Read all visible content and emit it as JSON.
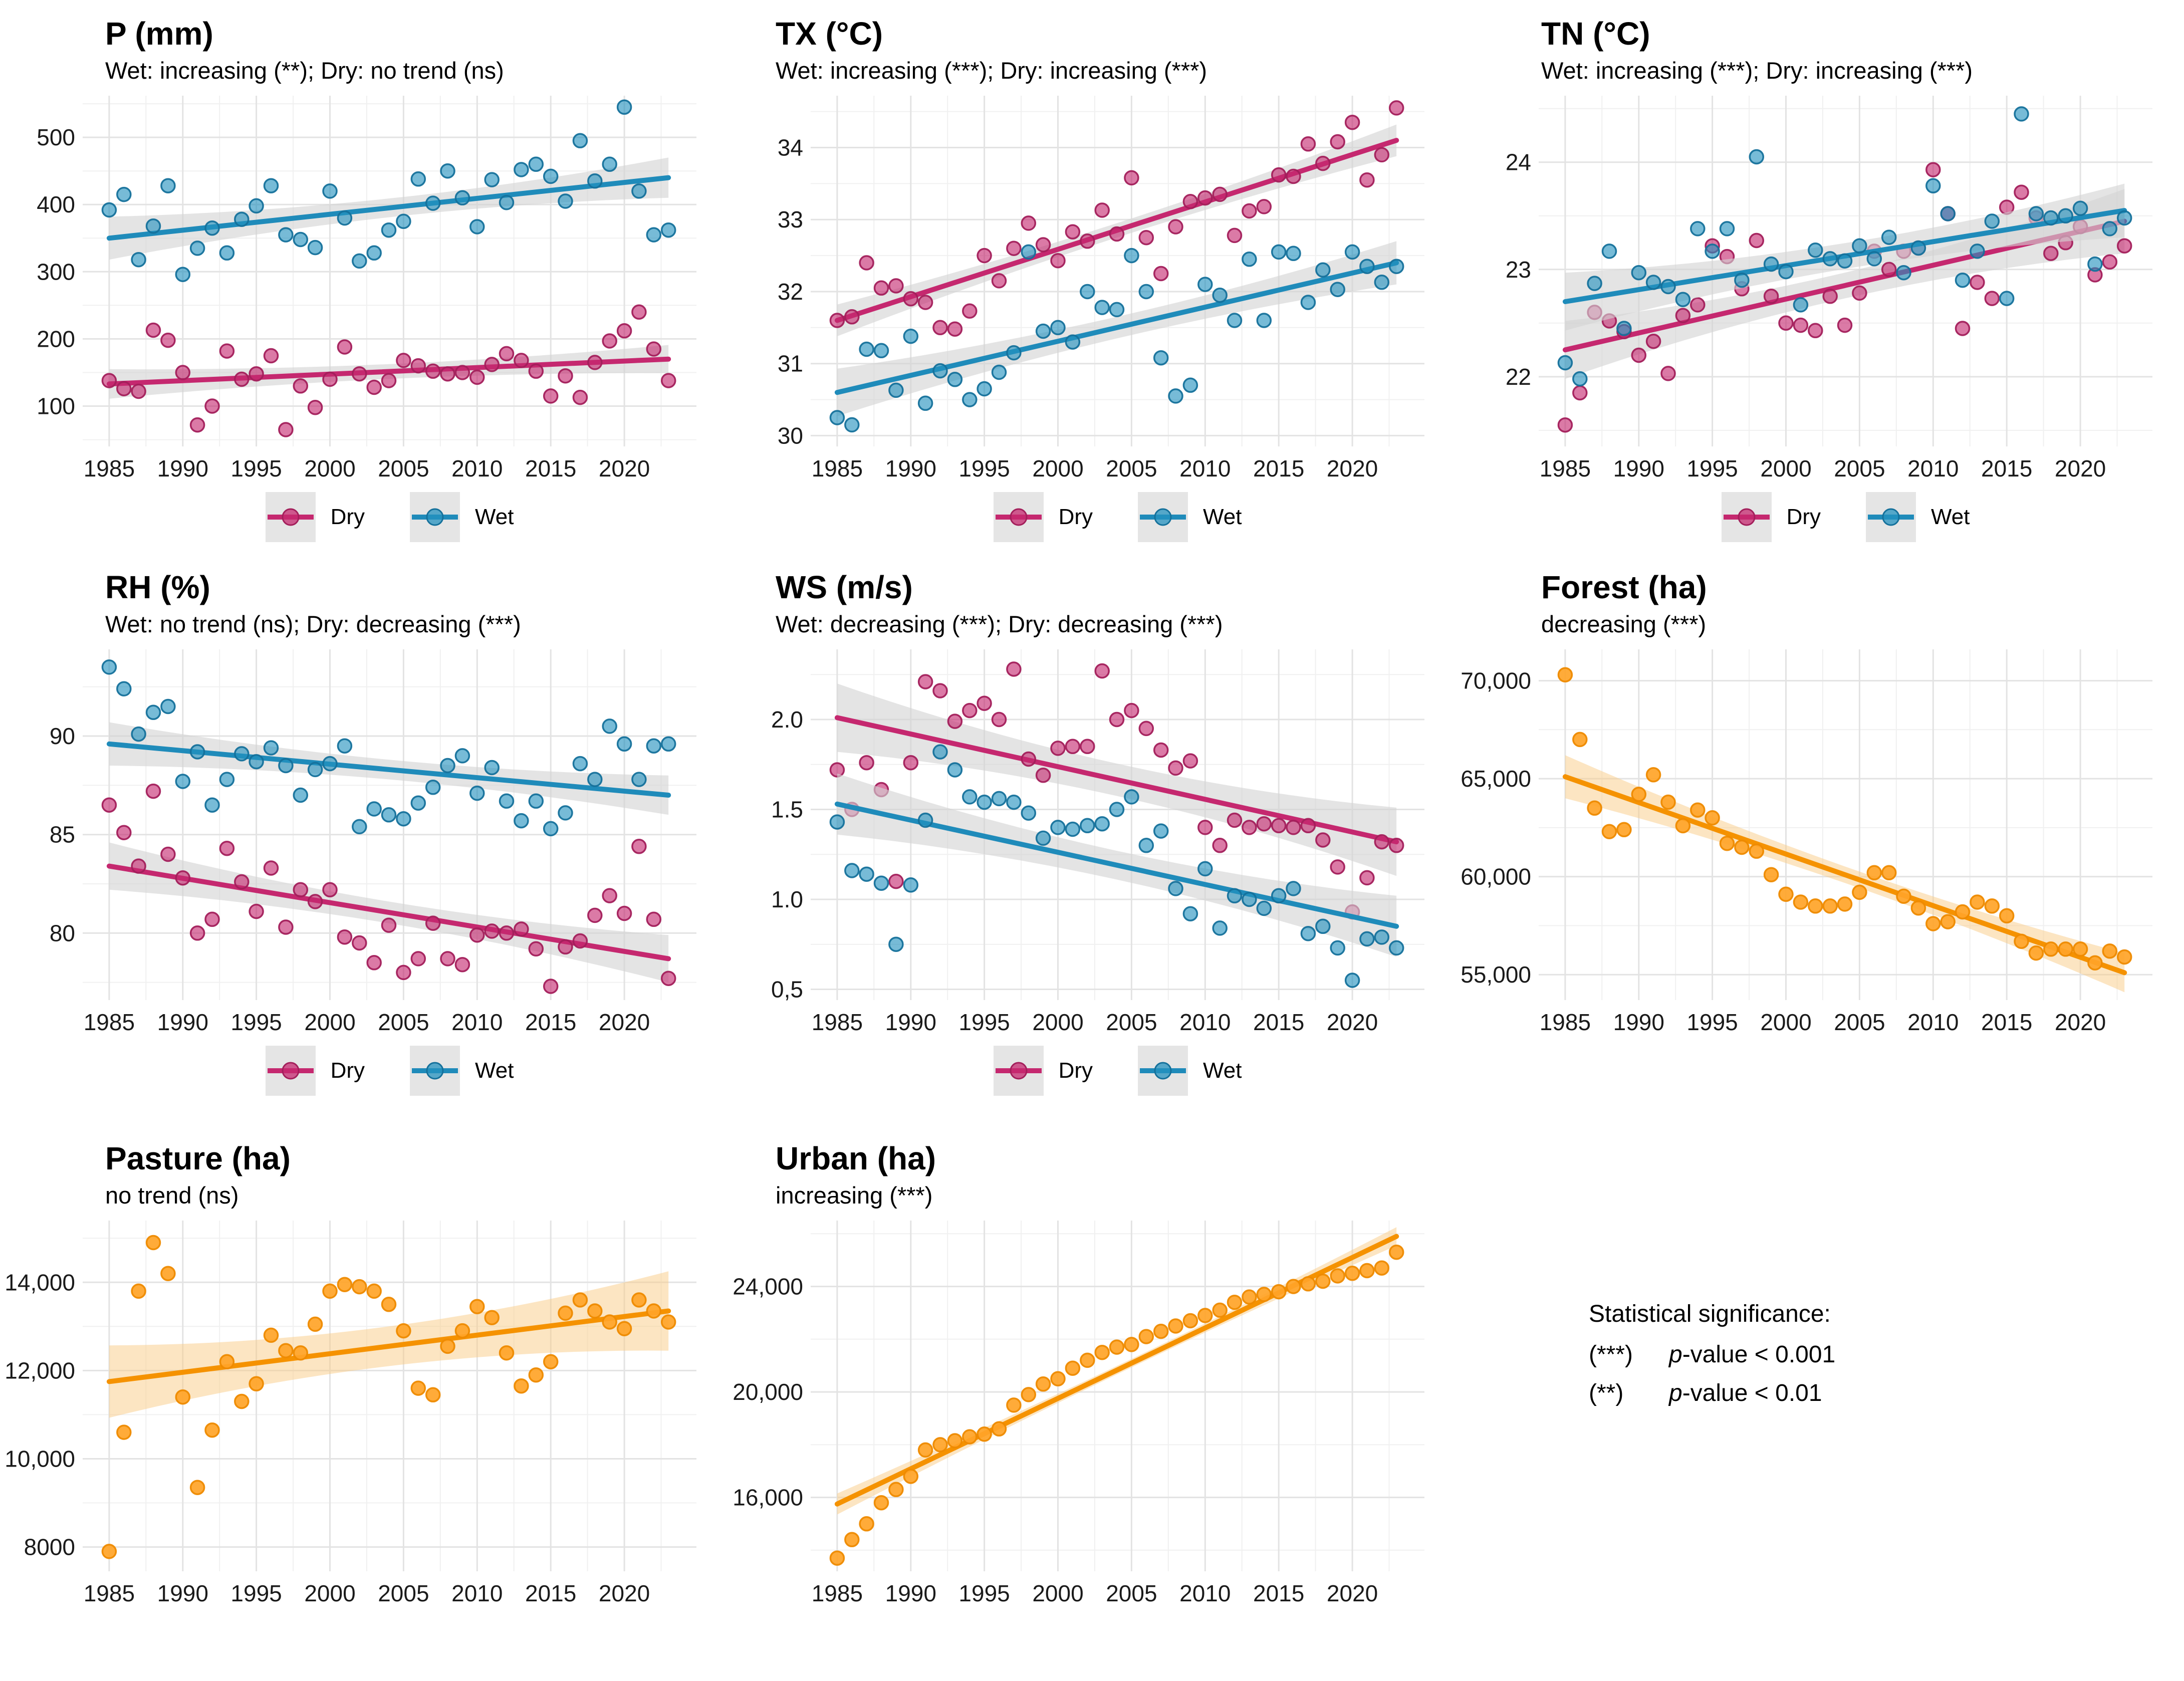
{
  "figure": {
    "legend": {
      "dry_label": "Dry",
      "wet_label": "Wet"
    },
    "significance_note": {
      "heading": "Statistical significance:",
      "lines": [
        {
          "stars": "(***)",
          "p": "p",
          "rest": "-value < 0.001"
        },
        {
          "stars": "(**)",
          "p": "p",
          "rest": "-value < 0.01"
        }
      ]
    }
  },
  "colors": {
    "dry": {
      "line": "#C5286F",
      "point": "#C5286F",
      "stroke": "#A31F5B",
      "fill_opacity": 0.62
    },
    "wet": {
      "line": "#1F8BBA",
      "point": "#2491BF",
      "stroke": "#15719B",
      "fill_opacity": 0.62
    },
    "orange": {
      "line": "#F59200",
      "point": "#FFA428",
      "stroke": "#EE8A00",
      "fill_opacity": 0.92
    },
    "band_gray": "#D4D4D4",
    "band_orange": "#FACB85",
    "grid_major": "#E3E3E3",
    "grid_minor": "#F0F0F0",
    "tick_text": "#1A1A1A"
  },
  "years": [
    1985,
    1986,
    1987,
    1988,
    1989,
    1990,
    1991,
    1992,
    1993,
    1994,
    1995,
    1996,
    1997,
    1998,
    1999,
    2000,
    2001,
    2002,
    2003,
    2004,
    2005,
    2006,
    2007,
    2008,
    2009,
    2010,
    2011,
    2012,
    2013,
    2014,
    2015,
    2016,
    2017,
    2018,
    2019,
    2020,
    2021,
    2022,
    2023
  ],
  "chart_data": [
    {
      "id": "p",
      "type": "scatter",
      "title": "P (mm)",
      "subtitle": "Wet: increasing (**); Dry: no trend (ns)",
      "xlim": [
        1983.2,
        2024.9
      ],
      "ylim": [
        40,
        562
      ],
      "xticks": [
        1985,
        1990,
        1995,
        2000,
        2005,
        2010,
        2015,
        2020
      ],
      "yticks": [
        100,
        200,
        300,
        400,
        500
      ],
      "ytick_labels": [
        "100",
        "200",
        "300",
        "400",
        "500"
      ],
      "legend": true,
      "band": "gray",
      "series": [
        {
          "name": "Dry",
          "color": "dry",
          "values": [
            138,
            126,
            122,
            213,
            198,
            150,
            72,
            100,
            182,
            140,
            148,
            175,
            65,
            130,
            98,
            140,
            188,
            148,
            128,
            138,
            168,
            160,
            152,
            148,
            150,
            143,
            162,
            178,
            168,
            152,
            115,
            145,
            113,
            165,
            197,
            212,
            240,
            185,
            138
          ],
          "trend": {
            "start": 133,
            "end": 170
          },
          "band_margin": {
            "start": 22,
            "mid": 11,
            "end": 21
          }
        },
        {
          "name": "Wet",
          "color": "wet",
          "values": [
            392,
            415,
            318,
            368,
            428,
            296,
            335,
            365,
            328,
            378,
            398,
            428,
            355,
            348,
            336,
            420,
            380,
            316,
            328,
            362,
            375,
            438,
            402,
            450,
            410,
            367,
            437,
            403,
            452,
            460,
            442,
            405,
            495,
            435,
            460,
            545,
            420,
            355,
            362
          ],
          "trend": {
            "start": 350,
            "end": 440
          },
          "band_margin": {
            "start": 32,
            "mid": 14,
            "end": 30
          }
        }
      ]
    },
    {
      "id": "tx",
      "type": "scatter",
      "title": "TX (°C)",
      "subtitle": "Wet: increasing (***); Dry: increasing (***)",
      "xlim": [
        1983.2,
        2024.9
      ],
      "ylim": [
        29.85,
        34.72
      ],
      "xticks": [
        1985,
        1990,
        1995,
        2000,
        2005,
        2010,
        2015,
        2020
      ],
      "yticks": [
        30,
        31,
        32,
        33,
        34
      ],
      "ytick_labels": [
        "30",
        "31",
        "32",
        "33",
        "34"
      ],
      "legend": true,
      "band": "gray",
      "series": [
        {
          "name": "Dry",
          "color": "dry",
          "values": [
            31.6,
            31.65,
            32.4,
            32.05,
            32.08,
            31.9,
            31.85,
            31.5,
            31.48,
            31.73,
            32.5,
            32.15,
            32.6,
            32.95,
            32.65,
            32.43,
            32.83,
            32.7,
            33.13,
            32.8,
            33.58,
            32.75,
            32.25,
            32.9,
            33.25,
            33.3,
            33.35,
            32.78,
            33.12,
            33.18,
            33.62,
            33.6,
            34.05,
            33.78,
            34.08,
            34.35,
            33.55,
            33.9,
            34.55
          ],
          "trend": {
            "start": 31.6,
            "end": 34.1
          },
          "band_margin": {
            "start": 0.22,
            "mid": 0.1,
            "end": 0.22
          }
        },
        {
          "name": "Wet",
          "color": "wet",
          "values": [
            30.25,
            30.15,
            31.2,
            31.18,
            30.63,
            31.38,
            30.45,
            30.9,
            30.78,
            30.5,
            30.65,
            30.88,
            31.15,
            32.55,
            31.45,
            31.5,
            31.3,
            32.0,
            31.78,
            31.75,
            32.5,
            32.0,
            31.08,
            30.55,
            30.7,
            32.1,
            31.95,
            31.6,
            32.45,
            31.6,
            32.55,
            32.53,
            31.85,
            32.3,
            32.03,
            32.55,
            32.35,
            32.13,
            32.35
          ],
          "trend": {
            "start": 30.6,
            "end": 32.4
          },
          "band_margin": {
            "start": 0.33,
            "mid": 0.15,
            "end": 0.3
          }
        }
      ]
    },
    {
      "id": "tn",
      "type": "scatter",
      "title": "TN (°C)",
      "subtitle": "Wet: increasing (***); Dry: increasing (***)",
      "xlim": [
        1983.2,
        2024.9
      ],
      "ylim": [
        21.35,
        24.62
      ],
      "xticks": [
        1985,
        1990,
        1995,
        2000,
        2005,
        2010,
        2015,
        2020
      ],
      "yticks": [
        22,
        23,
        24
      ],
      "ytick_labels": [
        "22",
        "23",
        "24"
      ],
      "legend": true,
      "band": "gray",
      "series": [
        {
          "name": "Dry",
          "color": "dry",
          "values": [
            21.55,
            21.85,
            22.6,
            22.52,
            22.42,
            22.2,
            22.33,
            22.03,
            22.57,
            22.67,
            23.22,
            23.12,
            22.82,
            23.27,
            22.75,
            22.5,
            22.48,
            22.43,
            22.75,
            22.48,
            22.78,
            23.17,
            23.0,
            23.17,
            23.2,
            23.93,
            23.52,
            22.45,
            22.88,
            22.73,
            23.58,
            23.72,
            23.48,
            23.15,
            23.25,
            23.4,
            22.95,
            23.07,
            23.22
          ],
          "trend": {
            "start": 22.25,
            "end": 23.45
          },
          "band_margin": {
            "start": 0.27,
            "mid": 0.12,
            "end": 0.3
          }
        },
        {
          "name": "Wet",
          "color": "wet",
          "values": [
            22.13,
            21.98,
            22.87,
            23.17,
            22.45,
            22.97,
            22.88,
            22.84,
            22.72,
            23.38,
            23.17,
            23.38,
            22.9,
            24.05,
            23.05,
            22.98,
            22.67,
            23.18,
            23.1,
            23.08,
            23.22,
            23.1,
            23.3,
            22.97,
            23.2,
            23.78,
            23.52,
            22.9,
            23.17,
            23.45,
            22.73,
            24.45,
            23.52,
            23.48,
            23.5,
            23.57,
            23.05,
            23.38,
            23.48
          ],
          "trend": {
            "start": 22.7,
            "end": 23.55
          },
          "band_margin": {
            "start": 0.27,
            "mid": 0.12,
            "end": 0.25
          }
        }
      ]
    },
    {
      "id": "rh",
      "type": "scatter",
      "title": "RH (%)",
      "subtitle": "Wet: no trend (ns); Dry: decreasing (***)",
      "xlim": [
        1983.2,
        2024.9
      ],
      "ylim": [
        76.6,
        94.4
      ],
      "xticks": [
        1985,
        1990,
        1995,
        2000,
        2005,
        2010,
        2015,
        2020
      ],
      "yticks": [
        80,
        85,
        90
      ],
      "ytick_labels": [
        "80",
        "85",
        "90"
      ],
      "legend": true,
      "band": "gray",
      "series": [
        {
          "name": "Dry",
          "color": "dry",
          "values": [
            86.5,
            85.1,
            83.4,
            87.2,
            84.0,
            82.8,
            80.0,
            80.7,
            84.3,
            82.6,
            81.1,
            83.3,
            80.3,
            82.2,
            81.6,
            82.2,
            79.8,
            79.5,
            78.5,
            80.4,
            78.0,
            78.7,
            80.5,
            78.7,
            78.4,
            79.9,
            80.1,
            80.0,
            80.2,
            79.2,
            77.3,
            79.3,
            79.6,
            80.9,
            81.9,
            81.0,
            84.4,
            80.7,
            77.7
          ],
          "trend": {
            "start": 83.4,
            "end": 78.7
          },
          "band_margin": {
            "start": 1.2,
            "mid": 0.55,
            "end": 1.2
          }
        },
        {
          "name": "Wet",
          "color": "wet",
          "values": [
            93.5,
            92.4,
            90.1,
            91.2,
            91.5,
            87.7,
            89.2,
            86.5,
            87.8,
            89.1,
            88.7,
            89.4,
            88.5,
            87.0,
            88.3,
            88.6,
            89.5,
            85.4,
            86.3,
            86.0,
            85.8,
            86.6,
            87.4,
            88.5,
            89.0,
            87.1,
            88.4,
            86.7,
            85.7,
            86.7,
            85.3,
            86.1,
            88.6,
            87.8,
            90.5,
            89.6,
            87.8,
            89.5,
            89.6
          ],
          "trend": {
            "start": 89.6,
            "end": 87.0
          },
          "band_margin": {
            "start": 1.1,
            "mid": 0.5,
            "end": 1.0
          }
        }
      ]
    },
    {
      "id": "ws",
      "type": "scatter",
      "title": "WS (m/s)",
      "subtitle": "Wet: decreasing (***); Dry: decreasing (***)",
      "xlim": [
        1983.2,
        2024.9
      ],
      "ylim": [
        0.44,
        2.39
      ],
      "xticks": [
        1985,
        1990,
        1995,
        2000,
        2005,
        2010,
        2015,
        2020
      ],
      "yticks": [
        0.5,
        1.0,
        1.5,
        2.0
      ],
      "ytick_labels": [
        "0,5",
        "1.0",
        "1.5",
        "2.0"
      ],
      "legend": true,
      "band": "gray",
      "series": [
        {
          "name": "Dry",
          "color": "dry",
          "values": [
            1.72,
            1.5,
            1.76,
            1.61,
            1.1,
            1.76,
            2.21,
            2.16,
            1.99,
            2.05,
            2.09,
            2.0,
            2.28,
            1.78,
            1.69,
            1.84,
            1.85,
            1.85,
            2.27,
            2.0,
            2.05,
            1.95,
            1.83,
            1.73,
            1.77,
            1.4,
            1.3,
            1.44,
            1.4,
            1.42,
            1.41,
            1.4,
            1.41,
            1.33,
            1.18,
            0.93,
            1.12,
            1.32,
            1.3
          ],
          "trend": {
            "start": 2.01,
            "end": 1.32
          },
          "band_margin": {
            "start": 0.19,
            "mid": 0.09,
            "end": 0.19
          }
        },
        {
          "name": "Wet",
          "color": "wet",
          "values": [
            1.43,
            1.16,
            1.14,
            1.09,
            0.75,
            1.08,
            1.44,
            1.82,
            1.72,
            1.57,
            1.54,
            1.56,
            1.54,
            1.48,
            1.34,
            1.4,
            1.39,
            1.41,
            1.42,
            1.5,
            1.57,
            1.3,
            1.38,
            1.06,
            0.92,
            1.17,
            0.84,
            1.02,
            1.0,
            0.95,
            1.02,
            1.06,
            0.81,
            0.85,
            0.73,
            0.55,
            0.78,
            0.79,
            0.73
          ],
          "trend": {
            "start": 1.53,
            "end": 0.85
          },
          "band_margin": {
            "start": 0.17,
            "mid": 0.08,
            "end": 0.17
          }
        }
      ]
    },
    {
      "id": "forest",
      "type": "scatter",
      "title": "Forest (ha)",
      "subtitle": "decreasing (***)",
      "xlim": [
        1983.2,
        2024.9
      ],
      "ylim": [
        53700,
        71600
      ],
      "xticks": [
        1985,
        1990,
        1995,
        2000,
        2005,
        2010,
        2015,
        2020
      ],
      "yticks": [
        55000,
        60000,
        65000,
        70000
      ],
      "ytick_labels": [
        "55,000",
        "60,000",
        "65,000",
        "70,000"
      ],
      "legend": false,
      "band": "orange",
      "series": [
        {
          "name": "Forest",
          "color": "orange",
          "values": [
            70300,
            67000,
            63500,
            62300,
            62400,
            64200,
            65200,
            63800,
            62600,
            63400,
            63000,
            61700,
            61500,
            61300,
            60100,
            59100,
            58700,
            58500,
            58500,
            58600,
            59200,
            60200,
            60200,
            59000,
            58400,
            57600,
            57700,
            58200,
            58700,
            58500,
            58000,
            56700,
            56100,
            56300,
            56300,
            56300,
            55600,
            56200,
            55900
          ],
          "trend": {
            "start": 65100,
            "end": 55100
          },
          "band_margin": {
            "start": 1100,
            "mid": 420,
            "end": 1000
          }
        }
      ]
    },
    {
      "id": "pasture",
      "type": "scatter",
      "title": "Pasture (ha)",
      "subtitle": "no trend (ns)",
      "xlim": [
        1983.2,
        2024.9
      ],
      "ylim": [
        7450,
        15400
      ],
      "xticks": [
        1985,
        1990,
        1995,
        2000,
        2005,
        2010,
        2015,
        2020
      ],
      "yticks": [
        8000,
        10000,
        12000,
        14000
      ],
      "ytick_labels": [
        "8000",
        "10,000",
        "12,000",
        "14,000"
      ],
      "legend": false,
      "band": "orange",
      "series": [
        {
          "name": "Pasture",
          "color": "orange",
          "values": [
            7900,
            10600,
            13800,
            14900,
            14200,
            11400,
            9350,
            10650,
            12200,
            11300,
            11700,
            12800,
            12450,
            12400,
            13050,
            13800,
            13950,
            13900,
            13800,
            13500,
            12900,
            11600,
            11450,
            12550,
            12900,
            13450,
            13200,
            12400,
            11650,
            11900,
            12200,
            13300,
            13600,
            13350,
            13100,
            12950,
            13600,
            13350,
            13100
          ],
          "trend": {
            "start": 11750,
            "end": 13350
          },
          "band_margin": {
            "start": 820,
            "mid": 450,
            "end": 900
          }
        }
      ]
    },
    {
      "id": "urban",
      "type": "scatter",
      "title": "Urban (ha)",
      "subtitle": "increasing (***)",
      "xlim": [
        1983.2,
        2024.9
      ],
      "ylim": [
        13200,
        26500
      ],
      "xticks": [
        1985,
        1990,
        1995,
        2000,
        2005,
        2010,
        2015,
        2020
      ],
      "yticks": [
        16000,
        20000,
        24000
      ],
      "ytick_labels": [
        "16,000",
        "20,000",
        "24,000"
      ],
      "legend": false,
      "band": "orange",
      "series": [
        {
          "name": "Urban",
          "color": "orange",
          "values": [
            13700,
            14400,
            15000,
            15800,
            16300,
            16800,
            17800,
            18000,
            18150,
            18300,
            18400,
            18600,
            19500,
            19900,
            20300,
            20500,
            20900,
            21200,
            21500,
            21700,
            21800,
            22100,
            22300,
            22500,
            22700,
            22900,
            23100,
            23400,
            23600,
            23700,
            23800,
            24000,
            24100,
            24200,
            24400,
            24500,
            24600,
            24700,
            25300
          ],
          "trend": {
            "start": 15750,
            "end": 25900
          },
          "band_margin": {
            "start": 400,
            "mid": 160,
            "end": 350
          }
        }
      ]
    }
  ]
}
